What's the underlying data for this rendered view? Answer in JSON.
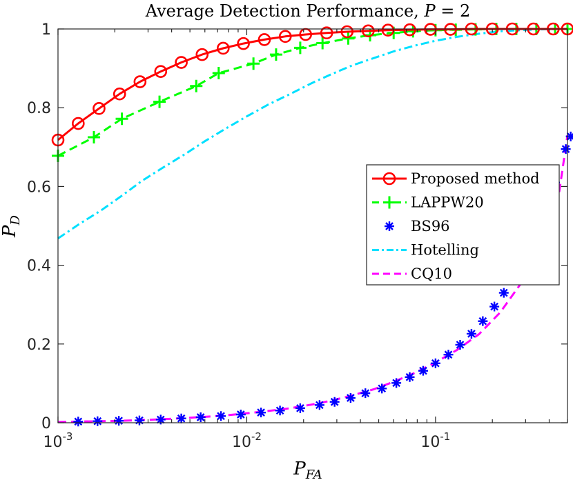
{
  "chart_data": {
    "type": "line",
    "title": "Average Detection Performance, P = 2",
    "title_parts": {
      "text": "Average Detection Performance, ",
      "var": "P",
      "rest": " = 2"
    },
    "xlabel": {
      "main": "P",
      "sub": "FA"
    },
    "ylabel": {
      "main": "P",
      "sub": "D"
    },
    "xscale": "log",
    "xlim": [
      0.001,
      0.5
    ],
    "ylim": [
      0,
      1
    ],
    "xticks": [
      {
        "value": 0.001,
        "base": "10",
        "exp": "-3"
      },
      {
        "value": 0.01,
        "base": "10",
        "exp": "-2"
      },
      {
        "value": 0.1,
        "base": "10",
        "exp": "-1"
      }
    ],
    "yticks": [
      {
        "value": 0,
        "label": "0"
      },
      {
        "value": 0.2,
        "label": "0.2"
      },
      {
        "value": 0.4,
        "label": "0.4"
      },
      {
        "value": 0.6,
        "label": "0.6"
      },
      {
        "value": 0.8,
        "label": "0.8"
      },
      {
        "value": 1,
        "label": "1"
      }
    ],
    "grid": false,
    "legend_position": "right-middle",
    "series": [
      {
        "name": "Proposed method",
        "color": "#ff0000",
        "line": "solid",
        "marker": "circle",
        "x": [
          0.001,
          0.00128,
          0.00165,
          0.00212,
          0.00272,
          0.0035,
          0.0045,
          0.0058,
          0.0075,
          0.0096,
          0.0124,
          0.016,
          0.0205,
          0.0265,
          0.034,
          0.044,
          0.056,
          0.073,
          0.094,
          0.12,
          0.155,
          0.2,
          0.255,
          0.33,
          0.42,
          0.5
        ],
        "y": [
          0.718,
          0.76,
          0.798,
          0.835,
          0.866,
          0.892,
          0.915,
          0.935,
          0.951,
          0.963,
          0.973,
          0.981,
          0.986,
          0.99,
          0.993,
          0.995,
          0.997,
          0.998,
          0.999,
          0.999,
          1.0,
          1.0,
          1.0,
          1.0,
          1.0,
          1.0
        ]
      },
      {
        "name": "LAPPW20",
        "color": "#00ff00",
        "line": "dashed",
        "marker": "plus",
        "x": [
          0.001,
          0.00155,
          0.00218,
          0.00345,
          0.0054,
          0.0071,
          0.01085,
          0.0143,
          0.0192,
          0.0252,
          0.0345,
          0.045,
          0.06,
          0.076,
          0.1,
          0.128,
          0.163,
          0.21,
          0.268,
          0.342,
          0.43,
          0.5
        ],
        "y": [
          0.678,
          0.725,
          0.772,
          0.815,
          0.855,
          0.888,
          0.912,
          0.935,
          0.952,
          0.964,
          0.976,
          0.984,
          0.99,
          0.994,
          0.997,
          0.998,
          0.999,
          1.0,
          1.0,
          1.0,
          1.0,
          1.0
        ]
      },
      {
        "name": "BS96",
        "color": "#0000ff",
        "line": "none",
        "marker": "asterisk",
        "x": [
          0.00128,
          0.00162,
          0.0021,
          0.0027,
          0.0035,
          0.0045,
          0.0057,
          0.0073,
          0.0093,
          0.0119,
          0.015,
          0.0192,
          0.0243,
          0.0292,
          0.0355,
          0.0425,
          0.052,
          0.062,
          0.073,
          0.086,
          0.1,
          0.117,
          0.135,
          0.155,
          0.178,
          0.205,
          0.23,
          0.27,
          0.315,
          0.37,
          0.43,
          0.49,
          0.52
        ],
        "y": [
          0.003,
          0.004,
          0.005,
          0.006,
          0.008,
          0.011,
          0.014,
          0.017,
          0.021,
          0.026,
          0.031,
          0.037,
          0.045,
          0.053,
          0.063,
          0.075,
          0.087,
          0.101,
          0.116,
          0.132,
          0.151,
          0.173,
          0.198,
          0.226,
          0.258,
          0.295,
          0.33,
          0.38,
          0.44,
          0.52,
          0.61,
          0.695,
          0.727
        ]
      },
      {
        "name": "Hotelling",
        "color": "#00e0ff",
        "line": "dashdot",
        "marker": "none",
        "x": [
          0.001,
          0.0013,
          0.0017,
          0.0022,
          0.0028,
          0.0036,
          0.0047,
          0.006,
          0.0078,
          0.01,
          0.013,
          0.017,
          0.022,
          0.028,
          0.036,
          0.047,
          0.06,
          0.078,
          0.1,
          0.13,
          0.17,
          0.22,
          0.28,
          0.36,
          0.45,
          0.5
        ],
        "y": [
          0.468,
          0.505,
          0.54,
          0.578,
          0.615,
          0.648,
          0.682,
          0.715,
          0.748,
          0.778,
          0.808,
          0.835,
          0.862,
          0.885,
          0.907,
          0.926,
          0.943,
          0.958,
          0.97,
          0.98,
          0.988,
          0.994,
          0.997,
          0.999,
          1.0,
          1.0
        ]
      },
      {
        "name": "CQ10",
        "color": "#ff00ff",
        "line": "dashed",
        "marker": "none",
        "x": [
          0.001,
          0.0013,
          0.0017,
          0.0022,
          0.0028,
          0.0036,
          0.0047,
          0.006,
          0.0078,
          0.01,
          0.013,
          0.017,
          0.022,
          0.028,
          0.036,
          0.047,
          0.06,
          0.078,
          0.1,
          0.13,
          0.17,
          0.22,
          0.28,
          0.36,
          0.45,
          0.5
        ],
        "y": [
          0.002,
          0.003,
          0.004,
          0.005,
          0.007,
          0.009,
          0.012,
          0.015,
          0.019,
          0.024,
          0.03,
          0.037,
          0.046,
          0.056,
          0.069,
          0.085,
          0.104,
          0.127,
          0.153,
          0.185,
          0.225,
          0.28,
          0.35,
          0.45,
          0.58,
          0.73
        ]
      }
    ]
  }
}
